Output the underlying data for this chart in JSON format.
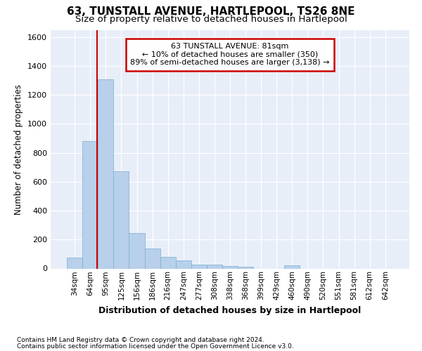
{
  "title": "63, TUNSTALL AVENUE, HARTLEPOOL, TS26 8NE",
  "subtitle": "Size of property relative to detached houses in Hartlepool",
  "xlabel": "Distribution of detached houses by size in Hartlepool",
  "ylabel": "Number of detached properties",
  "footnote1": "Contains HM Land Registry data © Crown copyright and database right 2024.",
  "footnote2": "Contains public sector information licensed under the Open Government Licence v3.0.",
  "bin_labels": [
    "34sqm",
    "64sqm",
    "95sqm",
    "125sqm",
    "156sqm",
    "186sqm",
    "216sqm",
    "247sqm",
    "277sqm",
    "308sqm",
    "338sqm",
    "368sqm",
    "399sqm",
    "429sqm",
    "460sqm",
    "490sqm",
    "520sqm",
    "551sqm",
    "581sqm",
    "612sqm",
    "642sqm"
  ],
  "bar_values": [
    75,
    880,
    1310,
    670,
    245,
    140,
    80,
    55,
    25,
    25,
    15,
    10,
    0,
    0,
    20,
    0,
    0,
    0,
    0,
    0,
    0
  ],
  "bar_color": "#b8d0ea",
  "bar_edge_color": "#7aadd4",
  "vline_x": 1.45,
  "vline_color": "#cc0000",
  "annotation_title": "63 TUNSTALL AVENUE: 81sqm",
  "annotation_line1": "← 10% of detached houses are smaller (350)",
  "annotation_line2": "89% of semi-detached houses are larger (3,138) →",
  "annotation_box_facecolor": "#ffffff",
  "annotation_box_edgecolor": "#cc0000",
  "ylim": [
    0,
    1650
  ],
  "yticks": [
    0,
    200,
    400,
    600,
    800,
    1000,
    1200,
    1400,
    1600
  ],
  "background_color": "#e8eef8",
  "grid_color": "#ffffff",
  "title_fontsize": 11,
  "subtitle_fontsize": 9.5,
  "xlabel_fontsize": 9,
  "ylabel_fontsize": 8.5,
  "tick_fontsize": 8,
  "xtick_fontsize": 7.5,
  "footnote_fontsize": 6.5
}
